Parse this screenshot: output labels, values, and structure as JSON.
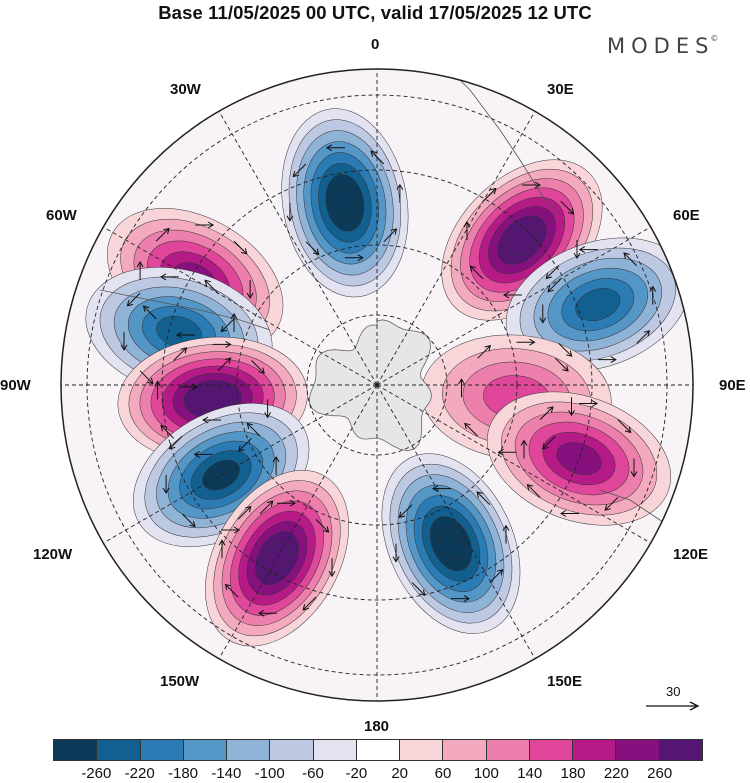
{
  "header": {
    "title": "Base 11/05/2025 00 UTC, valid 17/05/2025 12 UTC",
    "brand": "MODES",
    "brand_mark": "©"
  },
  "map": {
    "projection": "south-polar-stereographic",
    "graticule_dashed": true,
    "longitude_labels": {
      "lon_0": "0",
      "lon_30e": "30E",
      "lon_60e": "60E",
      "lon_90e": "90E",
      "lon_120e": "120E",
      "lon_150e": "150E",
      "lon_180": "180",
      "lon_150w": "150W",
      "lon_120w": "120W",
      "lon_90w": "90W",
      "lon_60w": "60W",
      "lon_30w": "30W"
    },
    "anomaly_centers": [
      {
        "longitude": "10W",
        "sign": "negative",
        "level": -260
      },
      {
        "longitude": "45E",
        "sign": "positive",
        "level": 260
      },
      {
        "longitude": "60W",
        "sign": "positive",
        "level": 180
      },
      {
        "longitude": "75W",
        "sign": "negative",
        "level": -180
      },
      {
        "longitude": "70E",
        "sign": "negative",
        "level": -180
      },
      {
        "longitude": "95W",
        "sign": "positive",
        "level": 260
      },
      {
        "longitude": "95E",
        "sign": "positive",
        "level": 100
      },
      {
        "longitude": "110E",
        "sign": "positive",
        "level": 180
      },
      {
        "longitude": "120W",
        "sign": "negative",
        "level": -220
      },
      {
        "longitude": "150W",
        "sign": "positive",
        "level": 260
      },
      {
        "longitude": "155E",
        "sign": "negative",
        "level": -260
      }
    ],
    "vector_scale_label": "30"
  },
  "colorbar": {
    "tick_labels": [
      "-260",
      "-220",
      "-180",
      "-140",
      "-100",
      "-60",
      "-20",
      "20",
      "60",
      "100",
      "140",
      "180",
      "220",
      "260"
    ],
    "colors": [
      "#0c3a59",
      "#11608f",
      "#2b7bb5",
      "#5496c6",
      "#8fb2d7",
      "#bdc8e3",
      "#e2e2f0",
      "#ffffff",
      "#f8d5d8",
      "#f3aabe",
      "#ec7fab",
      "#e0479a",
      "#b61a86",
      "#86107e",
      "#551673"
    ]
  }
}
